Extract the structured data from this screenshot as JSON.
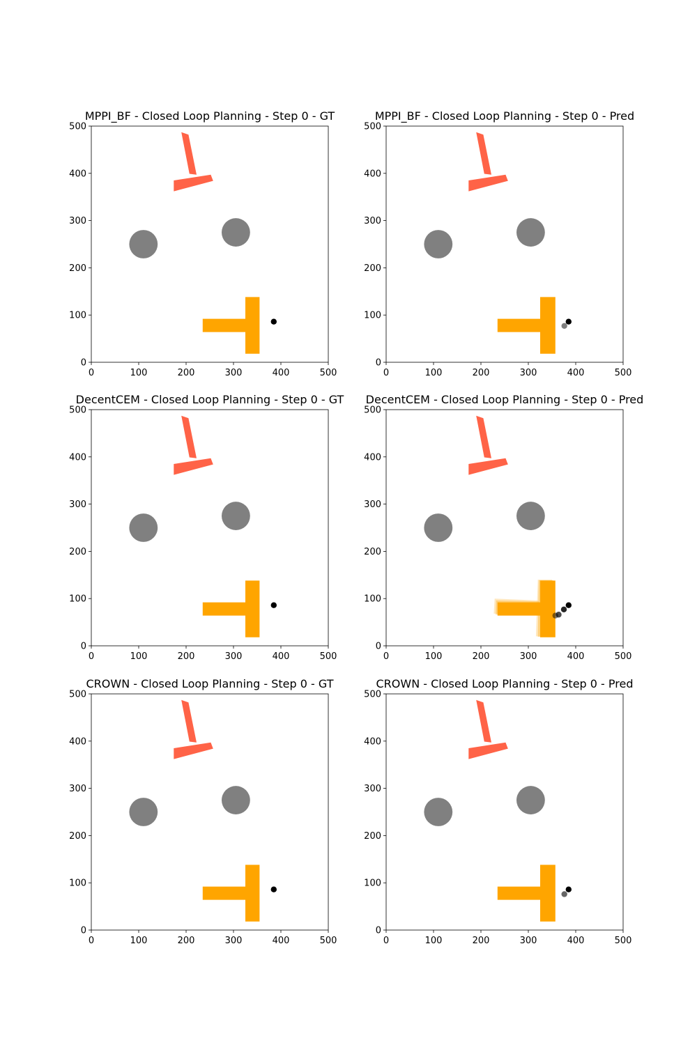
{
  "colors": {
    "t_target": "#ff6347",
    "t_current": "#ffa500",
    "obstacle": "#808080",
    "point": "#000000"
  },
  "chart_data": [
    {
      "type": "scatter",
      "title": "MPPI_BF - Closed Loop Planning - Step 0 - GT",
      "xlim": [
        0,
        500
      ],
      "ylim": [
        0,
        500
      ],
      "xticks": [
        "0",
        "100",
        "200",
        "300",
        "400",
        "500"
      ],
      "yticks": [
        "0",
        "100",
        "200",
        "300",
        "400",
        "500"
      ],
      "grid": false,
      "target_t": {
        "stem": [
          [
            190,
            487
          ],
          [
            205,
            482
          ],
          [
            222,
            397
          ],
          [
            207,
            399
          ]
        ],
        "bar": [
          [
            174,
            385
          ],
          [
            252,
            397
          ],
          [
            257,
            384
          ],
          [
            174,
            362
          ]
        ]
      },
      "obstacles": [
        {
          "x": 110,
          "y": 250,
          "r": 30
        },
        {
          "x": 305,
          "y": 275,
          "r": 30
        }
      ],
      "current_t": [
        {
          "stem": [
            [
              235,
              92
            ],
            [
              325,
              92
            ],
            [
              325,
              64
            ],
            [
              235,
              64
            ]
          ],
          "bar": [
            [
              325,
              138
            ],
            [
              355,
              138
            ],
            [
              355,
              18
            ],
            [
              325,
              18
            ]
          ],
          "opacity": 1
        }
      ],
      "points": [
        {
          "x": 385,
          "y": 86,
          "opacity": 1
        }
      ]
    },
    {
      "type": "scatter",
      "title": "MPPI_BF - Closed Loop Planning - Step 0 - Pred",
      "xlim": [
        0,
        500
      ],
      "ylim": [
        0,
        500
      ],
      "xticks": [
        "0",
        "100",
        "200",
        "300",
        "400",
        "500"
      ],
      "yticks": [
        "0",
        "100",
        "200",
        "300",
        "400",
        "500"
      ],
      "grid": false,
      "target_t": {
        "stem": [
          [
            190,
            487
          ],
          [
            205,
            482
          ],
          [
            222,
            397
          ],
          [
            207,
            399
          ]
        ],
        "bar": [
          [
            174,
            385
          ],
          [
            252,
            397
          ],
          [
            257,
            384
          ],
          [
            174,
            362
          ]
        ]
      },
      "obstacles": [
        {
          "x": 110,
          "y": 250,
          "r": 30
        },
        {
          "x": 305,
          "y": 275,
          "r": 30
        }
      ],
      "current_t": [
        {
          "stem": [
            [
              235,
              92
            ],
            [
              325,
              92
            ],
            [
              325,
              64
            ],
            [
              235,
              64
            ]
          ],
          "bar": [
            [
              325,
              138
            ],
            [
              357,
              138
            ],
            [
              357,
              18
            ],
            [
              325,
              18
            ]
          ],
          "opacity": 1
        }
      ],
      "points": [
        {
          "x": 376,
          "y": 77,
          "opacity": 0.5
        },
        {
          "x": 385,
          "y": 86,
          "opacity": 1
        }
      ]
    },
    {
      "type": "scatter",
      "title": "DecentCEM - Closed Loop Planning - Step 0 - GT",
      "xlim": [
        0,
        500
      ],
      "ylim": [
        0,
        500
      ],
      "xticks": [
        "0",
        "100",
        "200",
        "300",
        "400",
        "500"
      ],
      "yticks": [
        "0",
        "100",
        "200",
        "300",
        "400",
        "500"
      ],
      "grid": false,
      "target_t": {
        "stem": [
          [
            190,
            487
          ],
          [
            205,
            482
          ],
          [
            222,
            397
          ],
          [
            207,
            399
          ]
        ],
        "bar": [
          [
            174,
            385
          ],
          [
            252,
            397
          ],
          [
            257,
            384
          ],
          [
            174,
            362
          ]
        ]
      },
      "obstacles": [
        {
          "x": 110,
          "y": 250,
          "r": 30
        },
        {
          "x": 305,
          "y": 275,
          "r": 30
        }
      ],
      "current_t": [
        {
          "stem": [
            [
              235,
              92
            ],
            [
              325,
              92
            ],
            [
              325,
              64
            ],
            [
              235,
              64
            ]
          ],
          "bar": [
            [
              325,
              138
            ],
            [
              355,
              138
            ],
            [
              355,
              18
            ],
            [
              325,
              18
            ]
          ],
          "opacity": 1
        }
      ],
      "points": [
        {
          "x": 385,
          "y": 86,
          "opacity": 1
        }
      ]
    },
    {
      "type": "scatter",
      "title": "DecentCEM - Closed Loop Planning - Step 0 - Pred",
      "xlim": [
        0,
        500
      ],
      "ylim": [
        0,
        500
      ],
      "xticks": [
        "0",
        "100",
        "200",
        "300",
        "400",
        "500"
      ],
      "yticks": [
        "0",
        "100",
        "200",
        "300",
        "400",
        "500"
      ],
      "grid": false,
      "target_t": {
        "stem": [
          [
            190,
            487
          ],
          [
            205,
            482
          ],
          [
            222,
            397
          ],
          [
            207,
            399
          ]
        ],
        "bar": [
          [
            174,
            385
          ],
          [
            252,
            397
          ],
          [
            257,
            384
          ],
          [
            174,
            362
          ]
        ]
      },
      "obstacles": [
        {
          "x": 110,
          "y": 250,
          "r": 30
        },
        {
          "x": 305,
          "y": 275,
          "r": 30
        }
      ],
      "current_t": [
        {
          "stem": [
            [
              229,
              100
            ],
            [
              320,
              96
            ],
            [
              319,
              66
            ],
            [
              227,
              68
            ]
          ],
          "bar": [
            [
              320,
              140
            ],
            [
              350,
              140
            ],
            [
              346,
              20
            ],
            [
              316,
              20
            ]
          ],
          "opacity": 0.25
        },
        {
          "stem": [
            [
              232,
              96
            ],
            [
              323,
              94
            ],
            [
              322,
              65
            ],
            [
              231,
              66
            ]
          ],
          "bar": [
            [
              322,
              139
            ],
            [
              352,
              139
            ],
            [
              350,
              19
            ],
            [
              320,
              19
            ]
          ],
          "opacity": 0.35
        },
        {
          "stem": [
            [
              235,
              92
            ],
            [
              325,
              92
            ],
            [
              325,
              64
            ],
            [
              235,
              64
            ]
          ],
          "bar": [
            [
              325,
              138
            ],
            [
              357,
              138
            ],
            [
              357,
              18
            ],
            [
              325,
              18
            ]
          ],
          "opacity": 1
        }
      ],
      "points": [
        {
          "x": 357,
          "y": 64,
          "opacity": 0.5
        },
        {
          "x": 364,
          "y": 66,
          "opacity": 0.7
        },
        {
          "x": 375,
          "y": 77,
          "opacity": 0.85
        },
        {
          "x": 385,
          "y": 86,
          "opacity": 1
        }
      ]
    },
    {
      "type": "scatter",
      "title": "CROWN - Closed Loop Planning - Step 0 - GT",
      "xlim": [
        0,
        500
      ],
      "ylim": [
        0,
        500
      ],
      "xticks": [
        "0",
        "100",
        "200",
        "300",
        "400",
        "500"
      ],
      "yticks": [
        "0",
        "100",
        "200",
        "300",
        "400",
        "500"
      ],
      "grid": false,
      "target_t": {
        "stem": [
          [
            190,
            487
          ],
          [
            205,
            482
          ],
          [
            222,
            397
          ],
          [
            207,
            399
          ]
        ],
        "bar": [
          [
            174,
            385
          ],
          [
            252,
            397
          ],
          [
            257,
            384
          ],
          [
            174,
            362
          ]
        ]
      },
      "obstacles": [
        {
          "x": 110,
          "y": 250,
          "r": 30
        },
        {
          "x": 305,
          "y": 275,
          "r": 30
        }
      ],
      "current_t": [
        {
          "stem": [
            [
              235,
              92
            ],
            [
              325,
              92
            ],
            [
              325,
              64
            ],
            [
              235,
              64
            ]
          ],
          "bar": [
            [
              325,
              138
            ],
            [
              355,
              138
            ],
            [
              355,
              18
            ],
            [
              325,
              18
            ]
          ],
          "opacity": 1
        }
      ],
      "points": [
        {
          "x": 385,
          "y": 86,
          "opacity": 1
        }
      ]
    },
    {
      "type": "scatter",
      "title": "CROWN - Closed Loop Planning - Step 0 - Pred",
      "xlim": [
        0,
        500
      ],
      "ylim": [
        0,
        500
      ],
      "xticks": [
        "0",
        "100",
        "200",
        "300",
        "400",
        "500"
      ],
      "yticks": [
        "0",
        "100",
        "200",
        "300",
        "400",
        "500"
      ],
      "grid": false,
      "target_t": {
        "stem": [
          [
            190,
            487
          ],
          [
            205,
            482
          ],
          [
            222,
            397
          ],
          [
            207,
            399
          ]
        ],
        "bar": [
          [
            174,
            385
          ],
          [
            252,
            397
          ],
          [
            257,
            384
          ],
          [
            174,
            362
          ]
        ]
      },
      "obstacles": [
        {
          "x": 110,
          "y": 250,
          "r": 30
        },
        {
          "x": 305,
          "y": 275,
          "r": 30
        }
      ],
      "current_t": [
        {
          "stem": [
            [
              235,
              92
            ],
            [
              325,
              92
            ],
            [
              325,
              64
            ],
            [
              235,
              64
            ]
          ],
          "bar": [
            [
              325,
              138
            ],
            [
              357,
              138
            ],
            [
              357,
              18
            ],
            [
              325,
              18
            ]
          ],
          "opacity": 1
        }
      ],
      "points": [
        {
          "x": 376,
          "y": 76,
          "opacity": 0.6
        },
        {
          "x": 385,
          "y": 86,
          "opacity": 1
        }
      ]
    }
  ]
}
